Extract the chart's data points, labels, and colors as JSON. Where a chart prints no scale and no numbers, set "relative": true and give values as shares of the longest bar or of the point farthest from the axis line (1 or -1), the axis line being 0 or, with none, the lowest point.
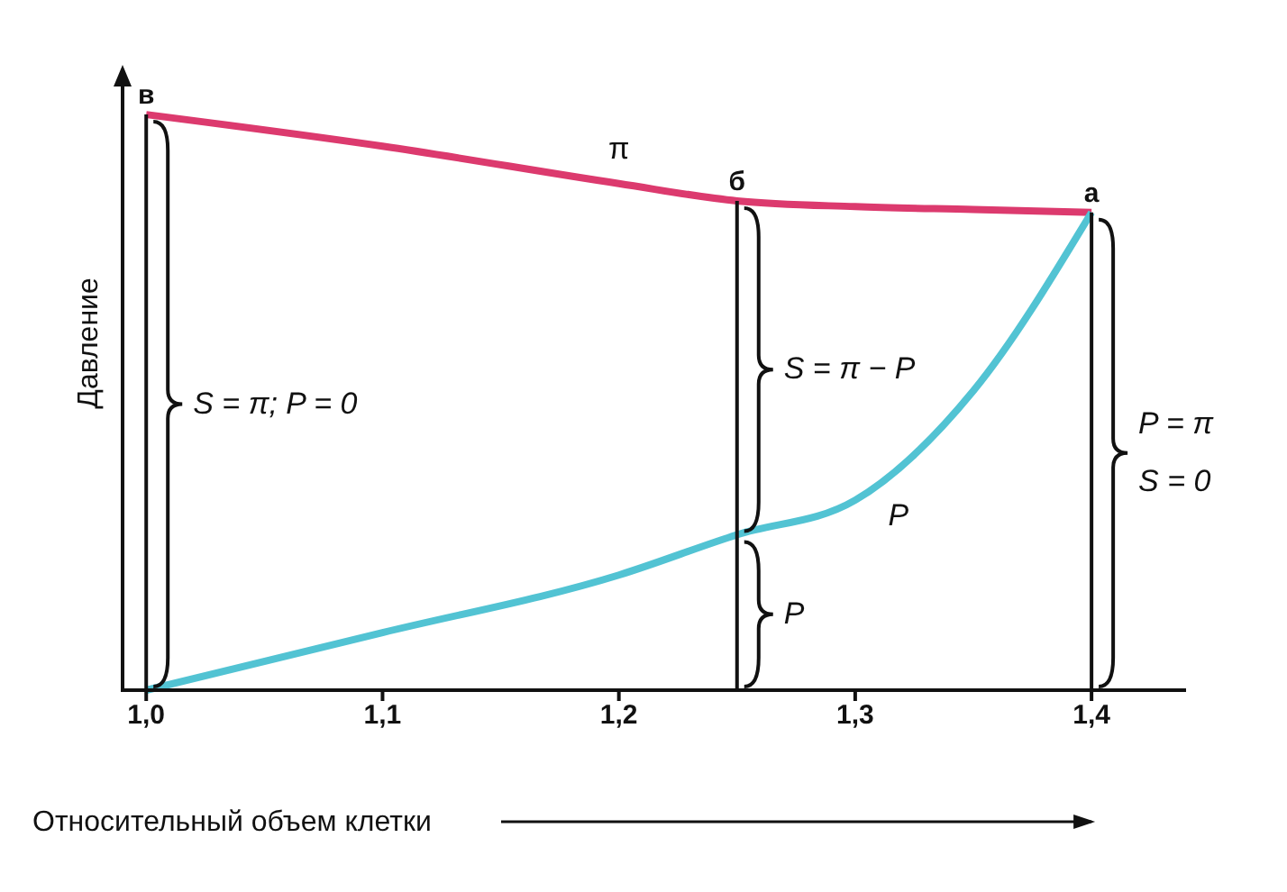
{
  "chart_data": {
    "type": "line",
    "relative": true,
    "xlabel": "Относительный объем клетки",
    "ylabel": "Давление",
    "x": [
      1.0,
      1.1,
      1.2,
      1.25,
      1.3,
      1.35,
      1.4
    ],
    "series": [
      {
        "name": "π",
        "color": "#dc3a6e",
        "values": [
          1.0,
          0.945,
          0.88,
          0.85,
          0.84,
          0.835,
          0.83
        ]
      },
      {
        "name": "P",
        "color": "#52c3d3",
        "values": [
          0,
          0.1,
          0.2,
          0.27,
          0.33,
          0.52,
          0.83
        ]
      }
    ],
    "xlim": [
      0.99,
      1.44
    ],
    "xticks": [
      {
        "value": 1.0,
        "label": "1,0"
      },
      {
        "value": 1.1,
        "label": "1,1"
      },
      {
        "value": 1.2,
        "label": "1,2"
      },
      {
        "value": 1.3,
        "label": "1,3"
      },
      {
        "value": 1.4,
        "label": "1,4"
      }
    ],
    "ref_lines": [
      {
        "axis": "x",
        "value": 1.0,
        "label": "в",
        "color": "#111111"
      },
      {
        "axis": "x",
        "value": 1.25,
        "label": "б",
        "color": "#111111"
      },
      {
        "axis": "x",
        "value": 1.4,
        "label": "а",
        "color": "#111111"
      }
    ],
    "annotations": [
      "S = π; P = 0",
      "S = π − P",
      "P",
      "P = π",
      "S = 0"
    ],
    "legend": false,
    "grid": false,
    "marker": "none",
    "line_style": "solid"
  }
}
